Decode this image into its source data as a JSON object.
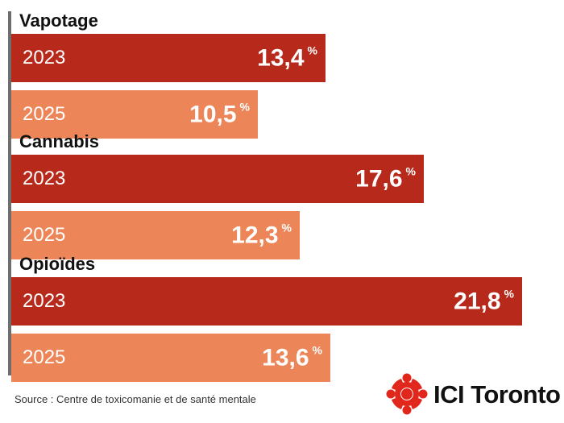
{
  "chart_data": {
    "type": "bar",
    "orientation": "horizontal",
    "unit": "%",
    "groups": [
      {
        "name": "Vapotage",
        "bars": [
          {
            "year": "2023",
            "value": 13.4,
            "label": "13,4"
          },
          {
            "year": "2025",
            "value": 10.5,
            "label": "10,5"
          }
        ]
      },
      {
        "name": "Cannabis",
        "bars": [
          {
            "year": "2023",
            "value": 17.6,
            "label": "17,6"
          },
          {
            "year": "2025",
            "value": 12.3,
            "label": "12,3"
          }
        ]
      },
      {
        "name": "Opioïdes",
        "bars": [
          {
            "year": "2023",
            "value": 21.8,
            "label": "21,8"
          },
          {
            "year": "2025",
            "value": 13.6,
            "label": "13,6"
          }
        ]
      }
    ],
    "xlim": [
      0,
      22.2
    ],
    "grid": false,
    "legend": "none"
  },
  "colors": {
    "2023": "#b7291b",
    "2025": "#ec8658",
    "axis": "#6e6e6e"
  },
  "source": "Source : Centre de toxicomanie et de santé mentale",
  "logo": {
    "text": "ICI Toronto",
    "icon": "radio-canada-gem-icon"
  }
}
